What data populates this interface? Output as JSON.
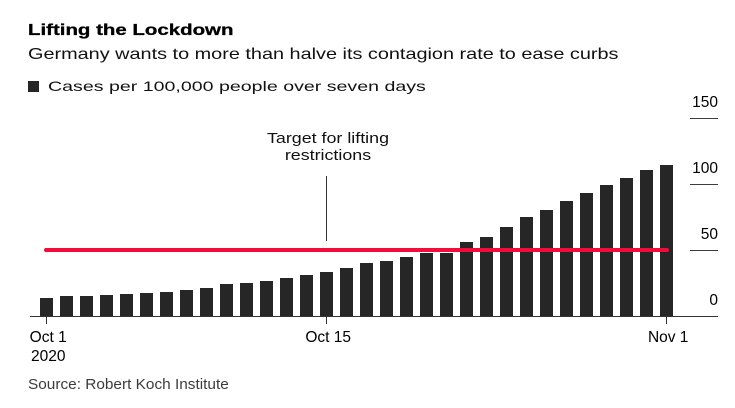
{
  "colors": {
    "bar": "#262626",
    "target_line": "#f50a3c",
    "axis_line": "#333333",
    "tick_line": "#3d3d3d",
    "annotation_line": "#333333"
  },
  "chart_data": {
    "type": "bar",
    "title": "Lifting the Lockdown",
    "subtitle": "Germany wants to more than halve its contagion rate to ease curbs",
    "legend": "Cases per 100,000 people over seven days",
    "source": "Source: Robert Koch Institute",
    "ylim": [
      0,
      150
    ],
    "y_ticks": [
      0,
      50,
      100,
      150
    ],
    "values": [
      13.8,
      15.4,
      15.0,
      16.2,
      16.8,
      17.7,
      18.5,
      19.9,
      21.7,
      24.2,
      25.1,
      26.6,
      29.3,
      31.2,
      33.7,
      36.9,
      40.6,
      42.2,
      44.8,
      48.1,
      48.3,
      55.9,
      60.0,
      67.9,
      75.2,
      80.9,
      87.0,
      93.7,
      99.4,
      104.8,
      111.1,
      114.9
    ],
    "x_ticks": [
      {
        "index": 0,
        "label": "Oct 1",
        "sublabel": "2020"
      },
      {
        "index": 14,
        "label": "Oct 15",
        "sublabel": ""
      },
      {
        "index": 31,
        "label": "Nov 1",
        "sublabel": ""
      }
    ],
    "target_line": {
      "value": 50,
      "label_lines": [
        "Target for lifting",
        "restrictions"
      ],
      "annotation_index": 14
    }
  }
}
